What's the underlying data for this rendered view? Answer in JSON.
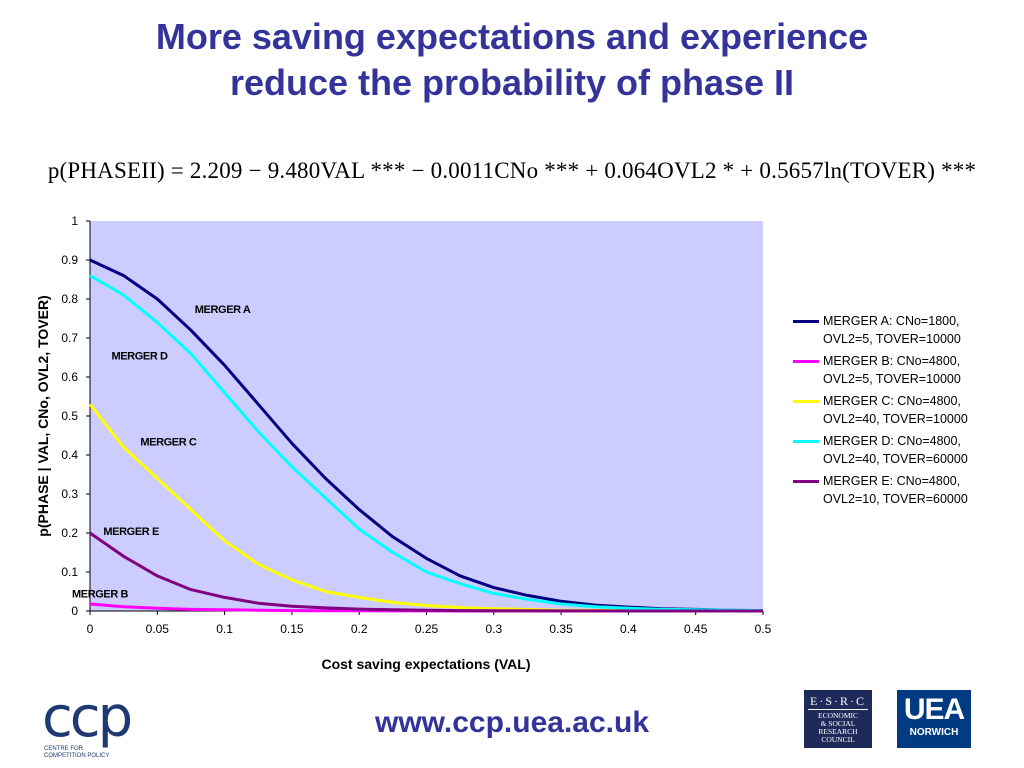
{
  "title": {
    "line1": "More saving expectations and experience",
    "line2": "reduce the probability of phase II"
  },
  "equation": "p(PHASEII) = 2.209 − 9.480VAL *** − 0.0011CNo *** + 0.064OVL2 * + 0.5657ln(TOVER) ***",
  "chart_data": {
    "type": "line",
    "xlabel": "Cost saving expectations (VAL)",
    "ylabel": "p(PHASE | VAL, CNo, OVL2, TOVER)",
    "xlim": [
      0,
      0.5
    ],
    "ylim": [
      0,
      1
    ],
    "x_ticks": [
      "0",
      "0.05",
      "0.1",
      "0.15",
      "0.2",
      "0.25",
      "0.3",
      "0.35",
      "0.4",
      "0.45",
      "0.5"
    ],
    "y_ticks": [
      "0",
      "0.1",
      "0.2",
      "0.3",
      "0.4",
      "0.5",
      "0.6",
      "0.7",
      "0.8",
      "0.9",
      "1"
    ],
    "grid": false,
    "plot_background": "#ccccff",
    "legend_position": "right",
    "x": [
      0,
      0.025,
      0.05,
      0.075,
      0.1,
      0.125,
      0.15,
      0.175,
      0.2,
      0.225,
      0.25,
      0.275,
      0.3,
      0.325,
      0.35,
      0.375,
      0.4,
      0.425,
      0.45,
      0.475,
      0.5
    ],
    "series": [
      {
        "name": "MERGER A: CNo=1800, OVL2=5, TOVER=10000",
        "legend_lines": [
          "MERGER A: CNo=1800,",
          "OVL2=5, TOVER=10000"
        ],
        "label": "MERGER A",
        "color": "#000080",
        "values": [
          0.9,
          0.86,
          0.8,
          0.72,
          0.63,
          0.53,
          0.43,
          0.34,
          0.26,
          0.19,
          0.135,
          0.09,
          0.06,
          0.04,
          0.025,
          0.015,
          0.01,
          0.006,
          0.004,
          0.002,
          0.001
        ]
      },
      {
        "name": "MERGER B: CNo=4800, OVL2=5, TOVER=10000",
        "legend_lines": [
          "MERGER B: CNo=4800,",
          "OVL2=5, TOVER=10000"
        ],
        "label": "MERGER B",
        "color": "#ff00ff",
        "values": [
          0.018,
          0.011,
          0.007,
          0.004,
          0.003,
          0.002,
          0.001,
          0.0008,
          0.0005,
          0.0003,
          0.0002,
          0.0001,
          0,
          0,
          0,
          0,
          0,
          0,
          0,
          0,
          0
        ]
      },
      {
        "name": "MERGER C: CNo=4800, OVL2=40, TOVER=10000",
        "legend_lines": [
          "MERGER C: CNo=4800,",
          "OVL2=40, TOVER=10000"
        ],
        "label": "MERGER C",
        "color": "#ffff00",
        "values": [
          0.53,
          0.42,
          0.34,
          0.26,
          0.18,
          0.12,
          0.08,
          0.05,
          0.035,
          0.022,
          0.014,
          0.009,
          0.006,
          0.004,
          0.002,
          0.0015,
          0.001,
          0.0006,
          0.0004,
          0.0002,
          0.0001
        ]
      },
      {
        "name": "MERGER D: CNo=4800, OVL2=40, TOVER=60000",
        "legend_lines": [
          "MERGER D: CNo=4800,",
          "OVL2=40, TOVER=60000"
        ],
        "label": "MERGER D",
        "color": "#00ffff",
        "values": [
          0.86,
          0.81,
          0.74,
          0.66,
          0.56,
          0.46,
          0.37,
          0.29,
          0.21,
          0.15,
          0.1,
          0.07,
          0.045,
          0.03,
          0.018,
          0.011,
          0.007,
          0.004,
          0.003,
          0.002,
          0.001
        ]
      },
      {
        "name": "MERGER E: CNo=4800, OVL2=10, TOVER=60000",
        "legend_lines": [
          "MERGER E: CNo=4800,",
          "OVL2=10, TOVER=60000"
        ],
        "label": "MERGER E",
        "color": "#800080",
        "values": [
          0.2,
          0.14,
          0.09,
          0.055,
          0.035,
          0.02,
          0.012,
          0.008,
          0.005,
          0.003,
          0.002,
          0.001,
          0.0008,
          0.0005,
          0.0003,
          0.0002,
          0.0001,
          0,
          0,
          0,
          0
        ]
      }
    ]
  },
  "footer": {
    "url": "www.ccp.uea.ac.uk",
    "ccp_letters": "ccp",
    "ccp_tagline_1": "CENTRE FOR",
    "ccp_tagline_2": "COMPETITION POLICY",
    "esrc_big": "E·S·R·C",
    "esrc_lines": [
      "ECONOMIC",
      "& SOCIAL",
      "RESEARCH",
      "COUNCIL"
    ],
    "uea_big": "UEA",
    "uea_small": "NORWICH"
  }
}
